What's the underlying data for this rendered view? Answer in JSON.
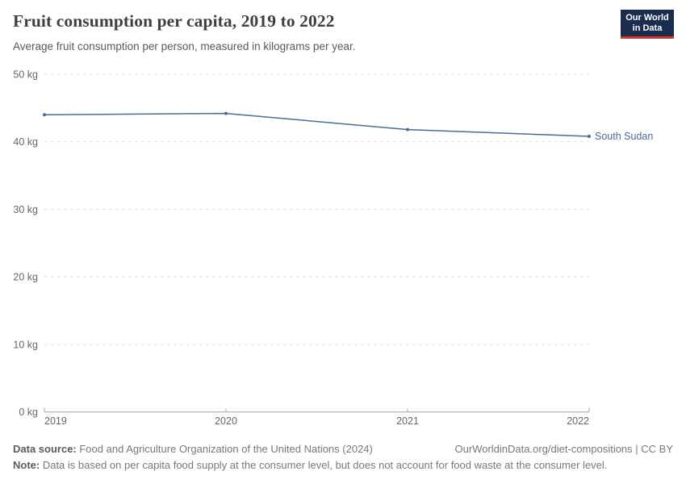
{
  "header": {
    "title": "Fruit consumption per capita, 2019 to 2022",
    "subtitle": "Average fruit consumption per person, measured in kilograms per year.",
    "logo": {
      "line1": "Our World",
      "line2": "in Data",
      "bg_color": "#1a2c4f",
      "accent_color": "#d1342a"
    }
  },
  "chart_data": {
    "type": "line",
    "title": "Fruit consumption per capita, 2019 to 2022",
    "xlabel": "",
    "ylabel": "kilograms per year",
    "x": [
      2019,
      2020,
      2021,
      2022
    ],
    "series": [
      {
        "name": "South Sudan",
        "values": [
          44.0,
          44.2,
          41.8,
          40.8
        ],
        "color": "#4c6a9c"
      }
    ],
    "ylim": [
      0,
      50
    ],
    "yticks": [
      0,
      10,
      20,
      30,
      40,
      50
    ],
    "ytick_suffix": " kg",
    "xticks": [
      2019,
      2020,
      2021,
      2022
    ],
    "grid": "horizontal-dashed",
    "grid_color": "#dcdcdc",
    "axis_color": "#a3a3a3",
    "tick_label_color": "#666666",
    "legend_position": "end-of-line-label"
  },
  "footer": {
    "datasource_label": "Data source:",
    "datasource_value": " Food and Agriculture Organization of the United Nations (2024)",
    "link": "OurWorldinData.org/diet-compositions | CC BY",
    "note_label": "Note:",
    "note_value": " Data is based on per capita food supply at the consumer level, but does not account for food waste at the consumer level."
  }
}
